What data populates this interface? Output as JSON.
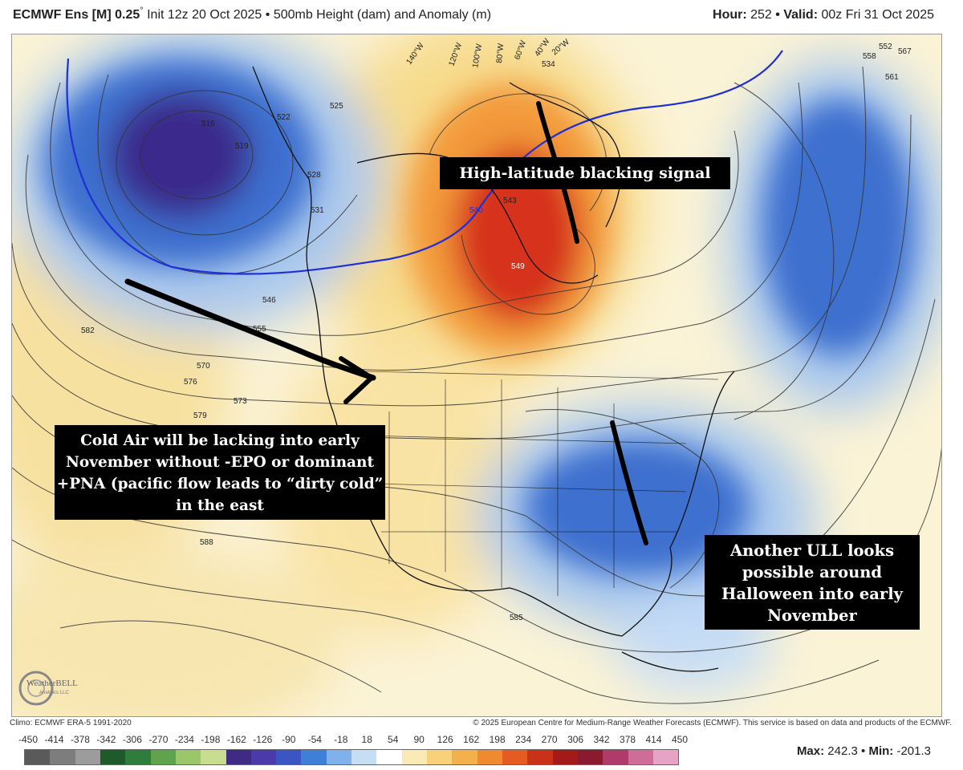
{
  "header": {
    "model_label": "ECMWF Ens [M] 0.25",
    "degree_symbol": "°",
    "init_text": "Init 12z 20 Oct 2025",
    "bullet": "•",
    "product": "500mb Height (dam) and Anomaly (m)",
    "hour_label": "Hour:",
    "hour_value": "252",
    "valid_label": "Valid:",
    "valid_value": "00z Fri 31 Oct 2025"
  },
  "callouts": {
    "blocking": "High-latitude blacking signal",
    "cold_air": "Cold Air will be lacking into early November without -EPO or dominant +PNA (pacific flow leads to “dirty cold” in the east",
    "ull": "Another ULL looks possible around Halloween into early November"
  },
  "map": {
    "longitude_labels": [
      "140°W",
      "120°W",
      "100°W",
      "80°W",
      "60°W",
      "40°W",
      "20°W"
    ],
    "contour_labels": [
      "516",
      "519",
      "522",
      "525",
      "528",
      "531",
      "534",
      "540",
      "543",
      "546",
      "549",
      "552",
      "555",
      "558",
      "561",
      "567",
      "570",
      "573",
      "576",
      "579",
      "582",
      "585",
      "588"
    ],
    "logo_text": "WeatherBELL",
    "logo_subtext": "Analytics LLC",
    "colors": {
      "strong_negative": "#3a2b8c",
      "negative": "#3d70cf",
      "weak_negative": "#a9c8ee",
      "neutral": "#ffffff",
      "weak_positive": "#f7dc8e",
      "positive": "#f39a3a",
      "strong_positive": "#d6321c",
      "contour_540_line": "#1f2fd6",
      "annotation": "#000000"
    }
  },
  "footer": {
    "climo": "Climo: ECMWF ERA-5 1991-2020",
    "copyright": "© 2025 European Centre for Medium-Range Weather Forecasts (ECMWF). This service is based on data and products of the ECMWF."
  },
  "colorbar": {
    "ticks": [
      "-450",
      "-414",
      "-378",
      "-342",
      "-306",
      "-270",
      "-234",
      "-198",
      "-162",
      "-126",
      "-90",
      "-54",
      "-18",
      "18",
      "54",
      "90",
      "126",
      "162",
      "198",
      "234",
      "270",
      "306",
      "342",
      "378",
      "414",
      "450"
    ],
    "colors": [
      "#5a5a5a",
      "#7d7d7d",
      "#9c9c9c",
      "#1f5a2a",
      "#2e7d3a",
      "#5fa34d",
      "#9cc66a",
      "#c9dd8e",
      "#3f2a86",
      "#4b3ba8",
      "#3b55c4",
      "#3f7fd8",
      "#7fb2ec",
      "#c6ddf6",
      "#ffffff",
      "#fbeab5",
      "#f7d27a",
      "#f5b04e",
      "#f08a30",
      "#e45c22",
      "#c93217",
      "#a41a18",
      "#8c1a2e",
      "#b03a6a",
      "#cf6c98",
      "#e7a3c5"
    ],
    "max_label": "Max:",
    "max_value": "242.3",
    "min_label": "Min:",
    "min_value": "-201.3"
  }
}
